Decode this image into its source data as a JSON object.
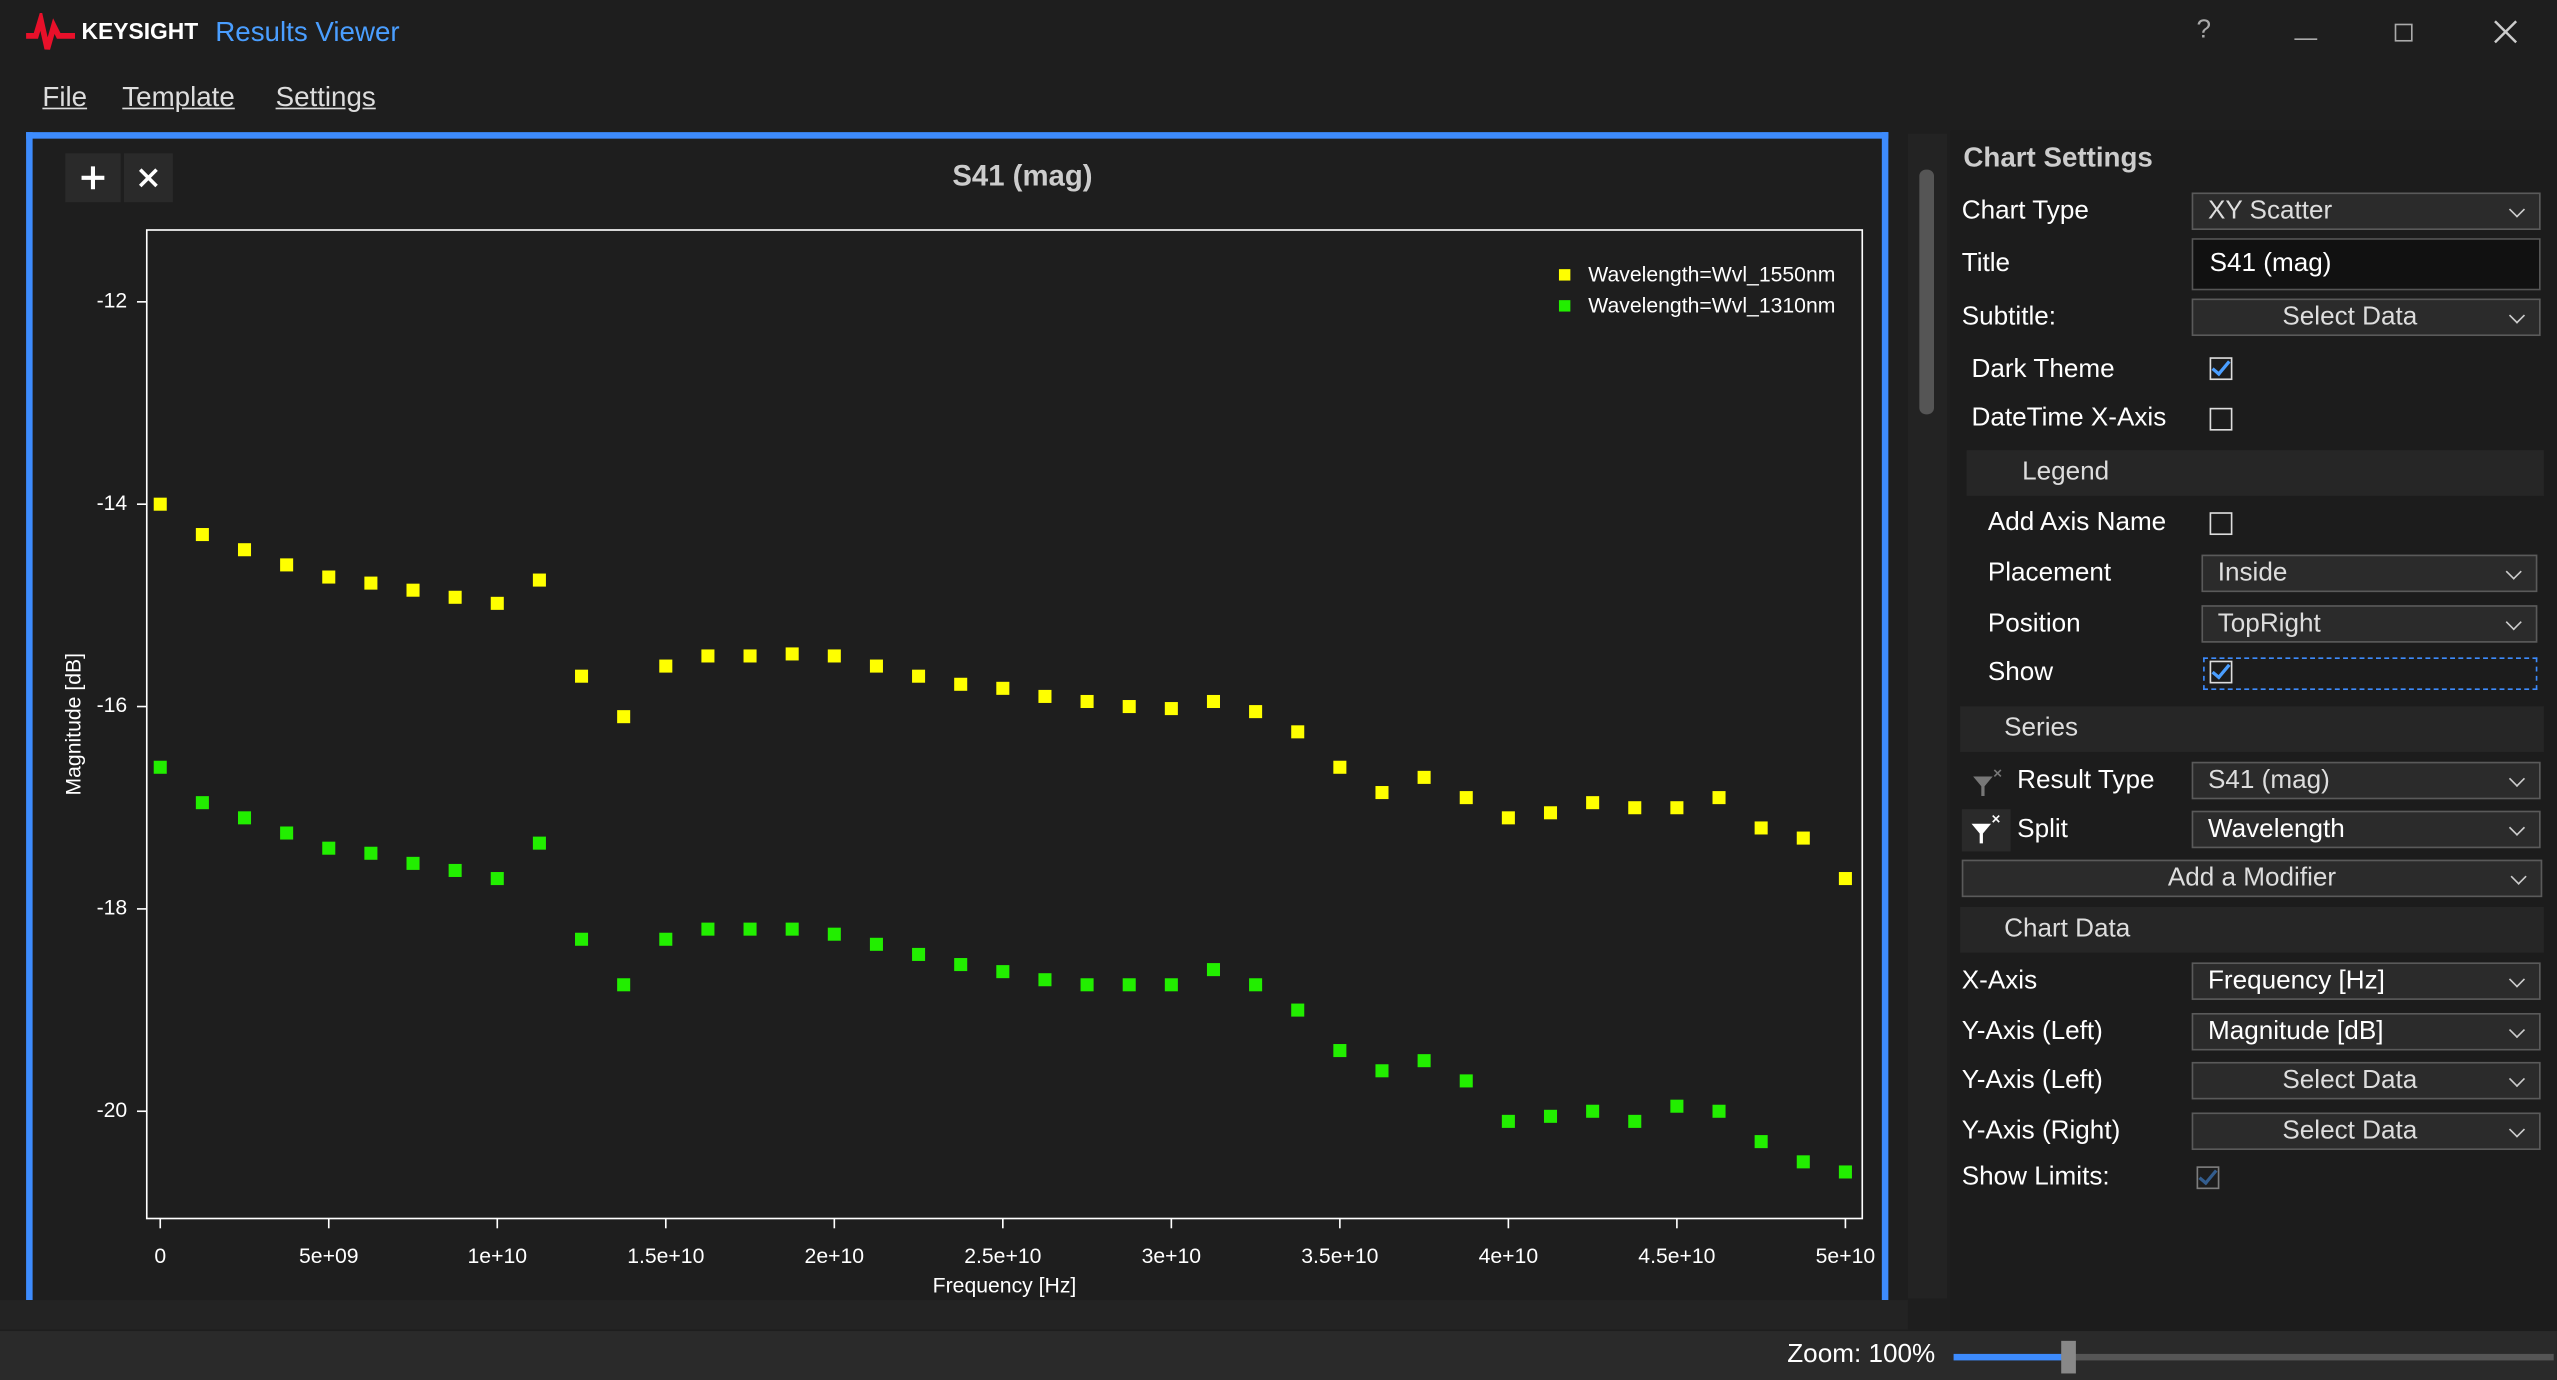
{
  "app": {
    "brand": "KEYSIGHT",
    "title": "Results Viewer",
    "help": "?"
  },
  "menu": [
    "File",
    "Template",
    "Settings"
  ],
  "settings": {
    "title": "Chart Settings",
    "chart_type": {
      "label": "Chart Type",
      "value": "XY Scatter"
    },
    "chart_title": {
      "label": "Title",
      "value": "S41 (mag)"
    },
    "subtitle": {
      "label": "Subtitle:",
      "value": "Select Data"
    },
    "dark_theme": {
      "label": "Dark Theme"
    },
    "datetime_x_axis": {
      "label": "DateTime X-Axis"
    },
    "legend": {
      "section": "Legend",
      "add_axis_name": "Add Axis Name",
      "placement": {
        "label": "Placement",
        "value": "Inside"
      },
      "position": {
        "label": "Position",
        "value": "TopRight"
      },
      "show": "Show"
    },
    "series": {
      "section": "Series",
      "result_type": {
        "label": "Result Type",
        "value": "S41 (mag)"
      },
      "split": {
        "label": "Split",
        "value": "Wavelength"
      },
      "add_modifier": "Add a Modifier"
    },
    "chart_data": {
      "section": "Chart Data",
      "x_axis": {
        "label": "X-Axis",
        "value": "Frequency [Hz]"
      },
      "y_axis_left": {
        "label": "Y-Axis (Left)",
        "value": "Magnitude [dB]"
      },
      "y_axis_left_2": {
        "label": "Y-Axis (Left)",
        "value": "Select Data"
      },
      "y_axis_right": {
        "label": "Y-Axis (Right)",
        "value": "Select Data"
      },
      "show_limits": "Show Limits:"
    }
  },
  "status": {
    "zoom": "Zoom: 100%"
  },
  "chart_data": {
    "type": "scatter",
    "title": "S41 (mag)",
    "x_label": "Frequency [Hz]",
    "y_label": "Magnitude [dB]",
    "legend": "top-right",
    "grid": false,
    "xlim": [
      -400000000,
      50500000000
    ],
    "ylim": [
      -21.06,
      -11.29
    ],
    "xticks": [
      0,
      {
        "value": 5000000000,
        "label": "5e+09"
      },
      {
        "value": 10000000000,
        "label": "1e+10"
      },
      {
        "value": 15000000000,
        "label": "1.5e+10"
      },
      {
        "value": 20000000000,
        "label": "2e+10"
      },
      {
        "value": 25000000000,
        "label": "2.5e+10"
      },
      {
        "value": 30000000000,
        "label": "3e+10"
      },
      {
        "value": 35000000000,
        "label": "3.5e+10"
      },
      {
        "value": 40000000000,
        "label": "4e+10"
      },
      {
        "value": 45000000000,
        "label": "4.5e+10"
      },
      {
        "value": 50000000000,
        "label": "5e+10"
      }
    ],
    "yticks": [
      -12,
      -14,
      -16,
      -18,
      -20
    ],
    "x": [
      0,
      1250000000,
      2500000000,
      3750000000,
      5000000000,
      6250000000,
      7500000000,
      8750000000,
      10000000000,
      11250000000,
      12500000000,
      13750000000,
      15000000000,
      16250000000,
      17500000000,
      18750000000,
      20000000000,
      21250000000,
      22500000000,
      23750000000,
      25000000000,
      26250000000,
      27500000000,
      28750000000,
      30000000000,
      31250000000,
      32500000000,
      33750000000,
      35000000000,
      36250000000,
      37500000000,
      38750000000,
      40000000000,
      41250000000,
      42500000000,
      43750000000,
      45000000000,
      46250000000,
      47500000000,
      48750000000,
      50000000000
    ],
    "series": [
      {
        "name": "Wavelength=Wvl_1550nm",
        "color": "#ffff00",
        "values": [
          -14.0,
          -14.3,
          -14.45,
          -14.6,
          -14.72,
          -14.78,
          -14.85,
          -14.92,
          -14.98,
          -14.75,
          -15.7,
          -16.1,
          -15.6,
          -15.5,
          -15.5,
          -15.48,
          -15.5,
          -15.6,
          -15.7,
          -15.78,
          -15.82,
          -15.9,
          -15.95,
          -16.0,
          -16.02,
          -15.95,
          -16.05,
          -16.25,
          -16.6,
          -16.85,
          -16.7,
          -16.9,
          -17.1,
          -17.05,
          -16.95,
          -17.0,
          -17.0,
          -16.9,
          -17.2,
          -17.3,
          -17.7
        ]
      },
      {
        "name": "Wavelength=Wvl_1310nm",
        "color": "#22ee00",
        "values": [
          -16.6,
          -16.95,
          -17.1,
          -17.25,
          -17.4,
          -17.45,
          -17.55,
          -17.62,
          -17.7,
          -17.35,
          -18.3,
          -18.75,
          -18.3,
          -18.2,
          -18.2,
          -18.2,
          -18.25,
          -18.35,
          -18.45,
          -18.55,
          -18.62,
          -18.7,
          -18.75,
          -18.75,
          -18.75,
          -18.6,
          -18.75,
          -19.0,
          -19.4,
          -19.6,
          -19.5,
          -19.7,
          -20.1,
          -20.05,
          -20.0,
          -20.1,
          -19.95,
          -20.0,
          -20.3,
          -20.5,
          -20.6
        ]
      }
    ]
  }
}
